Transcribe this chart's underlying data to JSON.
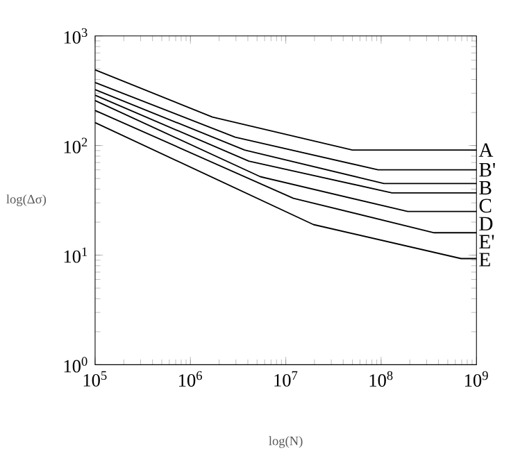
{
  "chart_data": {
    "type": "line",
    "xlabel": "log(N)",
    "ylabel": "log(Δσ)",
    "log": "xy",
    "xlim": [
      100000,
      1000000000
    ],
    "ylim": [
      1,
      1000
    ],
    "xticks": [
      {
        "value": 100000,
        "label": "10$^{5}$"
      },
      {
        "value": 1000000,
        "label": "10$^{6}$"
      },
      {
        "value": 10000000,
        "label": "10$^{7}$"
      },
      {
        "value": 100000000,
        "label": "10$^{8}$"
      },
      {
        "value": 1000000000,
        "label": "10$^{9}$"
      }
    ],
    "yticks": [
      {
        "value": 1,
        "label": "10$^{0}$"
      },
      {
        "value": 10,
        "label": "10$^{1}$"
      },
      {
        "value": 100,
        "label": "10$^{2}$"
      },
      {
        "value": 1000,
        "label": "10$^{3}$"
      }
    ],
    "series": [
      {
        "name": "A",
        "color": "#000000",
        "x": [
          100000,
          1700000,
          50000000,
          1000000000
        ],
        "values": [
          490,
          182,
          91,
          91
        ]
      },
      {
        "name": "B'",
        "color": "#000000",
        "x": [
          100000,
          2950000,
          93000000,
          1000000000
        ],
        "values": [
          376,
          119,
          60,
          60
        ]
      },
      {
        "name": "B",
        "color": "#000000",
        "x": [
          100000,
          3700000,
          107000000,
          1000000000
        ],
        "values": [
          324,
          91,
          45,
          45
        ]
      },
      {
        "name": "C",
        "color": "#000000",
        "x": [
          100000,
          4100000,
          130000000,
          1000000000
        ],
        "values": [
          288,
          72,
          37,
          37
        ]
      },
      {
        "name": "D",
        "color": "#000000",
        "x": [
          100000,
          5400000,
          190000000,
          1000000000
        ],
        "values": [
          257,
          52,
          25,
          25
        ]
      },
      {
        "name": "E'",
        "color": "#000000",
        "x": [
          100000,
          12000000,
          360000000,
          1000000000
        ],
        "values": [
          209,
          33,
          16,
          16
        ]
      },
      {
        "name": "E",
        "color": "#000000",
        "x": [
          100000,
          19500000,
          690000000,
          1000000000
        ],
        "values": [
          162,
          19,
          9.3,
          9.3
        ]
      }
    ]
  }
}
